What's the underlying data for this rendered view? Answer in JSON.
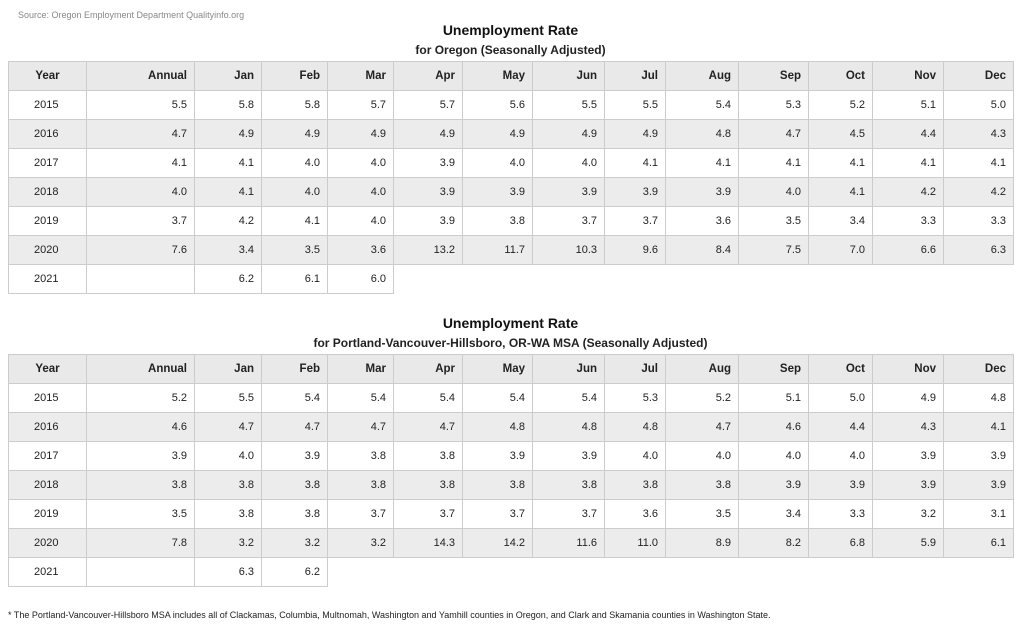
{
  "source": "Source: Oregon Employment Department Qualityinfo.org",
  "tables": [
    {
      "title": "Unemployment Rate",
      "subtitle": "for Oregon (Seasonally Adjusted)",
      "columns": [
        "Year",
        "Annual",
        "Jan",
        "Feb",
        "Mar",
        "Apr",
        "May",
        "Jun",
        "Jul",
        "Aug",
        "Sep",
        "Oct",
        "Nov",
        "Dec"
      ],
      "rows": [
        [
          "2015",
          "5.5",
          "5.8",
          "5.8",
          "5.7",
          "5.7",
          "5.6",
          "5.5",
          "5.5",
          "5.4",
          "5.3",
          "5.2",
          "5.1",
          "5.0"
        ],
        [
          "2016",
          "4.7",
          "4.9",
          "4.9",
          "4.9",
          "4.9",
          "4.9",
          "4.9",
          "4.9",
          "4.8",
          "4.7",
          "4.5",
          "4.4",
          "4.3"
        ],
        [
          "2017",
          "4.1",
          "4.1",
          "4.0",
          "4.0",
          "3.9",
          "4.0",
          "4.0",
          "4.1",
          "4.1",
          "4.1",
          "4.1",
          "4.1",
          "4.1"
        ],
        [
          "2018",
          "4.0",
          "4.1",
          "4.0",
          "4.0",
          "3.9",
          "3.9",
          "3.9",
          "3.9",
          "3.9",
          "4.0",
          "4.1",
          "4.2",
          "4.2"
        ],
        [
          "2019",
          "3.7",
          "4.2",
          "4.1",
          "4.0",
          "3.9",
          "3.8",
          "3.7",
          "3.7",
          "3.6",
          "3.5",
          "3.4",
          "3.3",
          "3.3"
        ],
        [
          "2020",
          "7.6",
          "3.4",
          "3.5",
          "3.6",
          "13.2",
          "11.7",
          "10.3",
          "9.6",
          "8.4",
          "7.5",
          "7.0",
          "6.6",
          "6.3"
        ],
        [
          "2021",
          null,
          "6.2",
          "6.1",
          "6.0"
        ]
      ]
    },
    {
      "title": "Unemployment Rate",
      "subtitle": "for Portland-Vancouver-Hillsboro, OR-WA MSA (Seasonally Adjusted)",
      "columns": [
        "Year",
        "Annual",
        "Jan",
        "Feb",
        "Mar",
        "Apr",
        "May",
        "Jun",
        "Jul",
        "Aug",
        "Sep",
        "Oct",
        "Nov",
        "Dec"
      ],
      "rows": [
        [
          "2015",
          "5.2",
          "5.5",
          "5.4",
          "5.4",
          "5.4",
          "5.4",
          "5.4",
          "5.3",
          "5.2",
          "5.1",
          "5.0",
          "4.9",
          "4.8"
        ],
        [
          "2016",
          "4.6",
          "4.7",
          "4.7",
          "4.7",
          "4.7",
          "4.8",
          "4.8",
          "4.8",
          "4.7",
          "4.6",
          "4.4",
          "4.3",
          "4.1"
        ],
        [
          "2017",
          "3.9",
          "4.0",
          "3.9",
          "3.8",
          "3.8",
          "3.9",
          "3.9",
          "4.0",
          "4.0",
          "4.0",
          "4.0",
          "3.9",
          "3.9"
        ],
        [
          "2018",
          "3.8",
          "3.8",
          "3.8",
          "3.8",
          "3.8",
          "3.8",
          "3.8",
          "3.8",
          "3.8",
          "3.9",
          "3.9",
          "3.9",
          "3.9"
        ],
        [
          "2019",
          "3.5",
          "3.8",
          "3.8",
          "3.7",
          "3.7",
          "3.7",
          "3.7",
          "3.6",
          "3.5",
          "3.4",
          "3.3",
          "3.2",
          "3.1"
        ],
        [
          "2020",
          "7.8",
          "3.2",
          "3.2",
          "3.2",
          "14.3",
          "14.2",
          "11.6",
          "11.0",
          "8.9",
          "8.2",
          "6.8",
          "5.9",
          "6.1"
        ],
        [
          "2021",
          null,
          "6.3",
          "6.2"
        ]
      ]
    }
  ],
  "footnote": "* The Portland-Vancouver-Hillsboro MSA includes all of Clackamas, Columbia, Multnomah, Washington and Yamhill counties in Oregon, and Clark and Skamania counties in Washington State."
}
